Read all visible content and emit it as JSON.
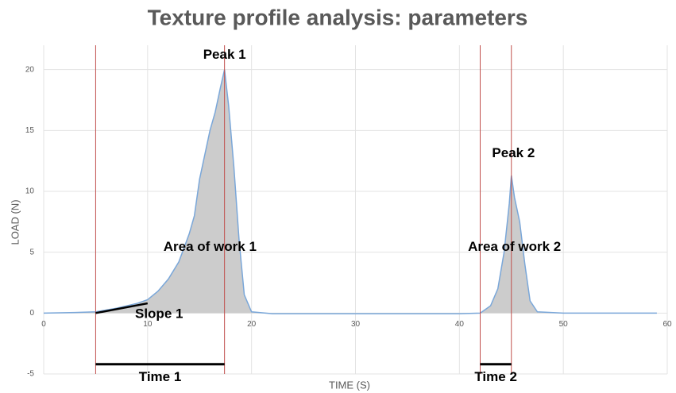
{
  "chart_data": {
    "type": "area",
    "title": "Texture profile analysis: parameters",
    "xlabel": "TIME (S)",
    "ylabel": "LOAD (N)",
    "xlim": [
      0,
      60
    ],
    "xticks": [
      0,
      10,
      20,
      30,
      40,
      50,
      60
    ],
    "ylim": [
      -5,
      22
    ],
    "yticks": [
      -5,
      0,
      5,
      10,
      15,
      20
    ],
    "grid": true,
    "series": [
      {
        "name": "Load",
        "color": "#7aa7d9",
        "fill": "#cccccc",
        "x": [
          0,
          3,
          5,
          7,
          9,
          10,
          11,
          12,
          13,
          14,
          14.5,
          15,
          15.5,
          16,
          16.5,
          17,
          17.4,
          17.8,
          18.3,
          18.8,
          19.3,
          20,
          22,
          30,
          40,
          42,
          43,
          43.7,
          44.3,
          44.8,
          45,
          45.3,
          45.8,
          46.3,
          46.8,
          47.5,
          50,
          59
        ],
        "values": [
          0,
          0.05,
          0.1,
          0.4,
          0.8,
          1.1,
          1.8,
          2.8,
          4.2,
          6.5,
          8,
          11,
          13,
          15,
          16.5,
          18.5,
          20,
          17,
          12,
          6,
          1.5,
          0.1,
          -0.05,
          -0.05,
          -0.05,
          0,
          0.6,
          2,
          5,
          9,
          11.3,
          9.5,
          7.5,
          4,
          1,
          0.1,
          0,
          0
        ]
      }
    ],
    "reference_lines": {
      "color": "#c0504d",
      "x": [
        5,
        17.4,
        42,
        45
      ]
    },
    "intervals": [
      {
        "label": "Time 1",
        "start": 5,
        "end": 17.4,
        "y": -4.2,
        "label_x": 11.2,
        "label_y": -5.3
      },
      {
        "label": "Time 2",
        "start": 42,
        "end": 45,
        "y": -4.2,
        "label_x": 43.5,
        "label_y": -5.3
      }
    ],
    "slope": {
      "label": "Slope 1",
      "x": [
        5,
        10
      ],
      "y": [
        0,
        0.8
      ],
      "label_x": 11.1,
      "label_y": -0.1
    },
    "annotations": [
      {
        "text": "Peak 1",
        "x": 17.4,
        "y": 21.2
      },
      {
        "text": "Peak 2",
        "x": 45.2,
        "y": 13.1
      },
      {
        "text": "Area of work 1",
        "x": 16,
        "y": 5.4
      },
      {
        "text": "Area of work 2",
        "x": 45.3,
        "y": 5.4
      }
    ]
  }
}
